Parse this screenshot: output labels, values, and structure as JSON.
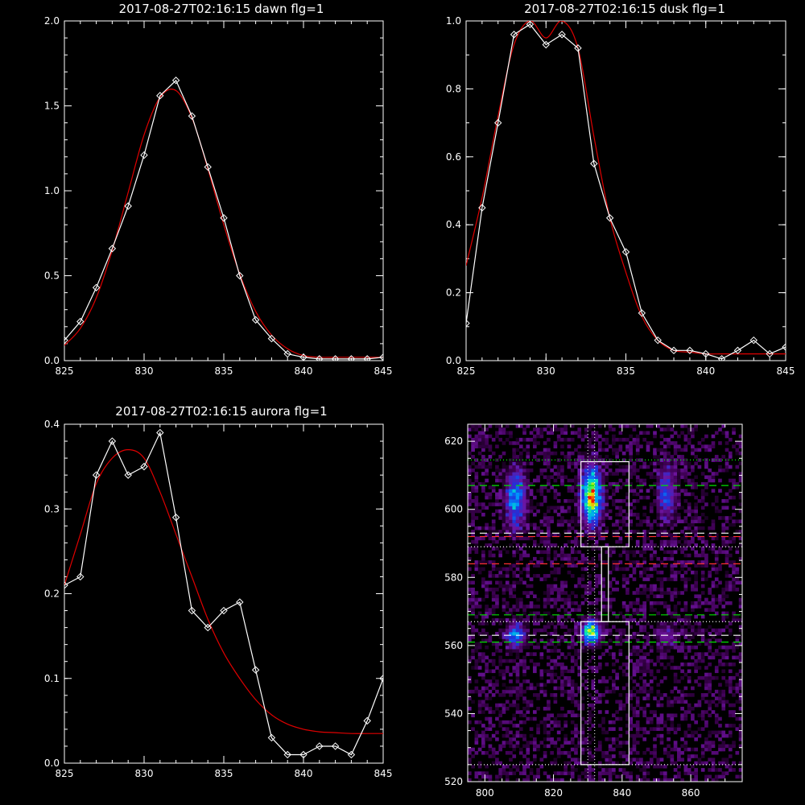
{
  "chart_data": [
    {
      "type": "line",
      "title": "2017-08-27T02:16:15 dawn flg=1",
      "xlim": [
        825,
        845
      ],
      "ylim": [
        0,
        2.0
      ],
      "xticks": [
        825,
        830,
        835,
        840,
        845
      ],
      "xtick_labels": [
        "825",
        "830",
        "835",
        "840",
        "845"
      ],
      "yticks": [
        0,
        0.5,
        1.0,
        1.5,
        2.0
      ],
      "ytick_labels": [
        "0.0",
        "0.5",
        "1.0",
        "1.5",
        "2.0"
      ],
      "colors": {
        "observed": "#ffffff",
        "fit": "#e00000"
      },
      "series": [
        {
          "x": [
            825,
            826,
            827,
            828,
            829,
            830,
            831,
            832,
            833,
            834,
            835,
            836,
            837,
            838,
            839,
            840,
            841,
            842,
            843,
            844,
            845
          ],
          "y": [
            0.12,
            0.23,
            0.43,
            0.66,
            0.91,
            1.21,
            1.56,
            1.65,
            1.44,
            1.14,
            0.84,
            0.5,
            0.24,
            0.13,
            0.04,
            0.02,
            0.01,
            0.01,
            0.01,
            0.01,
            0.02
          ]
        },
        {
          "x": [
            825,
            826,
            827,
            828,
            829,
            830,
            831,
            832,
            833,
            834,
            835,
            836,
            837,
            838,
            839,
            840,
            841,
            842,
            843,
            844,
            845
          ],
          "y": [
            0.09,
            0.19,
            0.37,
            0.65,
            0.99,
            1.33,
            1.55,
            1.59,
            1.43,
            1.13,
            0.8,
            0.51,
            0.29,
            0.15,
            0.07,
            0.03,
            0.02,
            0.02,
            0.02,
            0.02,
            0.02
          ]
        }
      ]
    },
    {
      "type": "line",
      "title": "2017-08-27T02:16:15 dusk flg=1",
      "xlim": [
        825,
        845
      ],
      "ylim": [
        0,
        1.0
      ],
      "xticks": [
        825,
        830,
        835,
        840,
        845
      ],
      "xtick_labels": [
        "825",
        "830",
        "835",
        "840",
        "845"
      ],
      "yticks": [
        0,
        0.2,
        0.4,
        0.6,
        0.8,
        1.0
      ],
      "ytick_labels": [
        "0.0",
        "0.2",
        "0.4",
        "0.6",
        "0.8",
        "1.0"
      ],
      "colors": {
        "observed": "#ffffff",
        "fit": "#e00000"
      },
      "series": [
        {
          "x": [
            825,
            826,
            827,
            828,
            829,
            830,
            831,
            832,
            833,
            834,
            835,
            836,
            837,
            838,
            839,
            840,
            841,
            842,
            843,
            844,
            845
          ],
          "y": [
            0.11,
            0.45,
            0.7,
            0.96,
            0.99,
            0.93,
            0.96,
            0.92,
            0.58,
            0.42,
            0.32,
            0.14,
            0.06,
            0.03,
            0.03,
            0.02,
            0.005,
            0.03,
            0.06,
            0.02,
            0.04
          ]
        },
        {
          "x": [
            825,
            826,
            827,
            828,
            829,
            830,
            831,
            832,
            833,
            834,
            835,
            836,
            837,
            838,
            839,
            840,
            841,
            842,
            843,
            844,
            845
          ],
          "y": [
            0.28,
            0.48,
            0.72,
            0.93,
            1.0,
            0.95,
            1.0,
            0.92,
            0.66,
            0.42,
            0.26,
            0.13,
            0.06,
            0.03,
            0.025,
            0.02,
            0.02,
            0.02,
            0.02,
            0.02,
            0.02
          ]
        }
      ]
    },
    {
      "type": "line",
      "title": "2017-08-27T02:16:15 aurora flg=1",
      "xlim": [
        825,
        845
      ],
      "ylim": [
        0,
        0.4
      ],
      "xticks": [
        825,
        830,
        835,
        840,
        845
      ],
      "xtick_labels": [
        "825",
        "830",
        "835",
        "840",
        "845"
      ],
      "yticks": [
        0,
        0.1,
        0.2,
        0.3,
        0.4
      ],
      "ytick_labels": [
        "0.0",
        "0.1",
        "0.2",
        "0.3",
        "0.4"
      ],
      "colors": {
        "observed": "#ffffff",
        "fit": "#e00000"
      },
      "series": [
        {
          "x": [
            825,
            826,
            827,
            828,
            829,
            830,
            831,
            832,
            833,
            834,
            835,
            836,
            837,
            838,
            839,
            840,
            841,
            842,
            843,
            844,
            845
          ],
          "y": [
            0.21,
            0.22,
            0.34,
            0.38,
            0.34,
            0.35,
            0.39,
            0.29,
            0.18,
            0.16,
            0.18,
            0.19,
            0.11,
            0.03,
            0.01,
            0.01,
            0.02,
            0.02,
            0.01,
            0.05,
            0.1
          ]
        },
        {
          "x": [
            825,
            826,
            827,
            828,
            829,
            830,
            831,
            832,
            833,
            834,
            835,
            836,
            837,
            838,
            839,
            840,
            841,
            842,
            843,
            844,
            845
          ],
          "y": [
            0.21,
            0.27,
            0.33,
            0.36,
            0.37,
            0.36,
            0.32,
            0.27,
            0.22,
            0.17,
            0.13,
            0.1,
            0.075,
            0.057,
            0.046,
            0.04,
            0.037,
            0.036,
            0.035,
            0.035,
            0.035
          ]
        }
      ]
    },
    {
      "type": "heatmap",
      "xlim": [
        795,
        875
      ],
      "ylim": [
        520,
        625
      ],
      "xticks": [
        800,
        820,
        840,
        860
      ],
      "xtick_labels": [
        "800",
        "820",
        "840",
        "860"
      ],
      "yticks": [
        520,
        540,
        560,
        580,
        600,
        620
      ],
      "ytick_labels": [
        "520",
        "540",
        "560",
        "580",
        "600",
        "620"
      ],
      "blobs": [
        {
          "x": 809,
          "y": 603,
          "intensity": 0.55
        },
        {
          "x": 831,
          "y": 604,
          "intensity": 1.0
        },
        {
          "x": 853,
          "y": 605,
          "intensity": 0.35
        },
        {
          "x": 809,
          "y": 563,
          "intensity": 0.5
        },
        {
          "x": 831,
          "y": 564,
          "intensity": 0.9
        },
        {
          "x": 853,
          "y": 563,
          "intensity": 0.25
        }
      ],
      "boxes": [
        {
          "x0": 828,
          "x1": 842,
          "y0": 589,
          "y1": 614
        },
        {
          "x0": 828,
          "x1": 842,
          "y0": 525,
          "y1": 567
        },
        {
          "x0": 834,
          "x1": 836,
          "y0": 567,
          "y1": 589
        }
      ],
      "hlines": [
        {
          "y": 614.5,
          "color": "#00ff00",
          "style": "dotted"
        },
        {
          "y": 607,
          "color": "#00e000",
          "style": "dashed"
        },
        {
          "y": 593,
          "color": "#ffffff",
          "style": "dashed"
        },
        {
          "y": 592,
          "color": "#ff3030",
          "style": "dashed"
        },
        {
          "y": 589,
          "color": "#ffffff",
          "style": "dotted"
        },
        {
          "y": 584,
          "color": "#ff3030",
          "style": "dashed"
        },
        {
          "y": 569,
          "color": "#00e000",
          "style": "dashed"
        },
        {
          "y": 567,
          "color": "#ffffff",
          "style": "dotted"
        },
        {
          "y": 563,
          "color": "#ffffff",
          "style": "dashed"
        },
        {
          "y": 561,
          "color": "#00e000",
          "style": "dashed"
        },
        {
          "y": 525,
          "color": "#ffffff",
          "style": "dotted"
        }
      ],
      "vlines": [
        {
          "x": 830,
          "color": "#ffffff",
          "style": "dotted"
        },
        {
          "x": 832,
          "color": "#ffffff",
          "style": "dotted"
        }
      ]
    }
  ]
}
